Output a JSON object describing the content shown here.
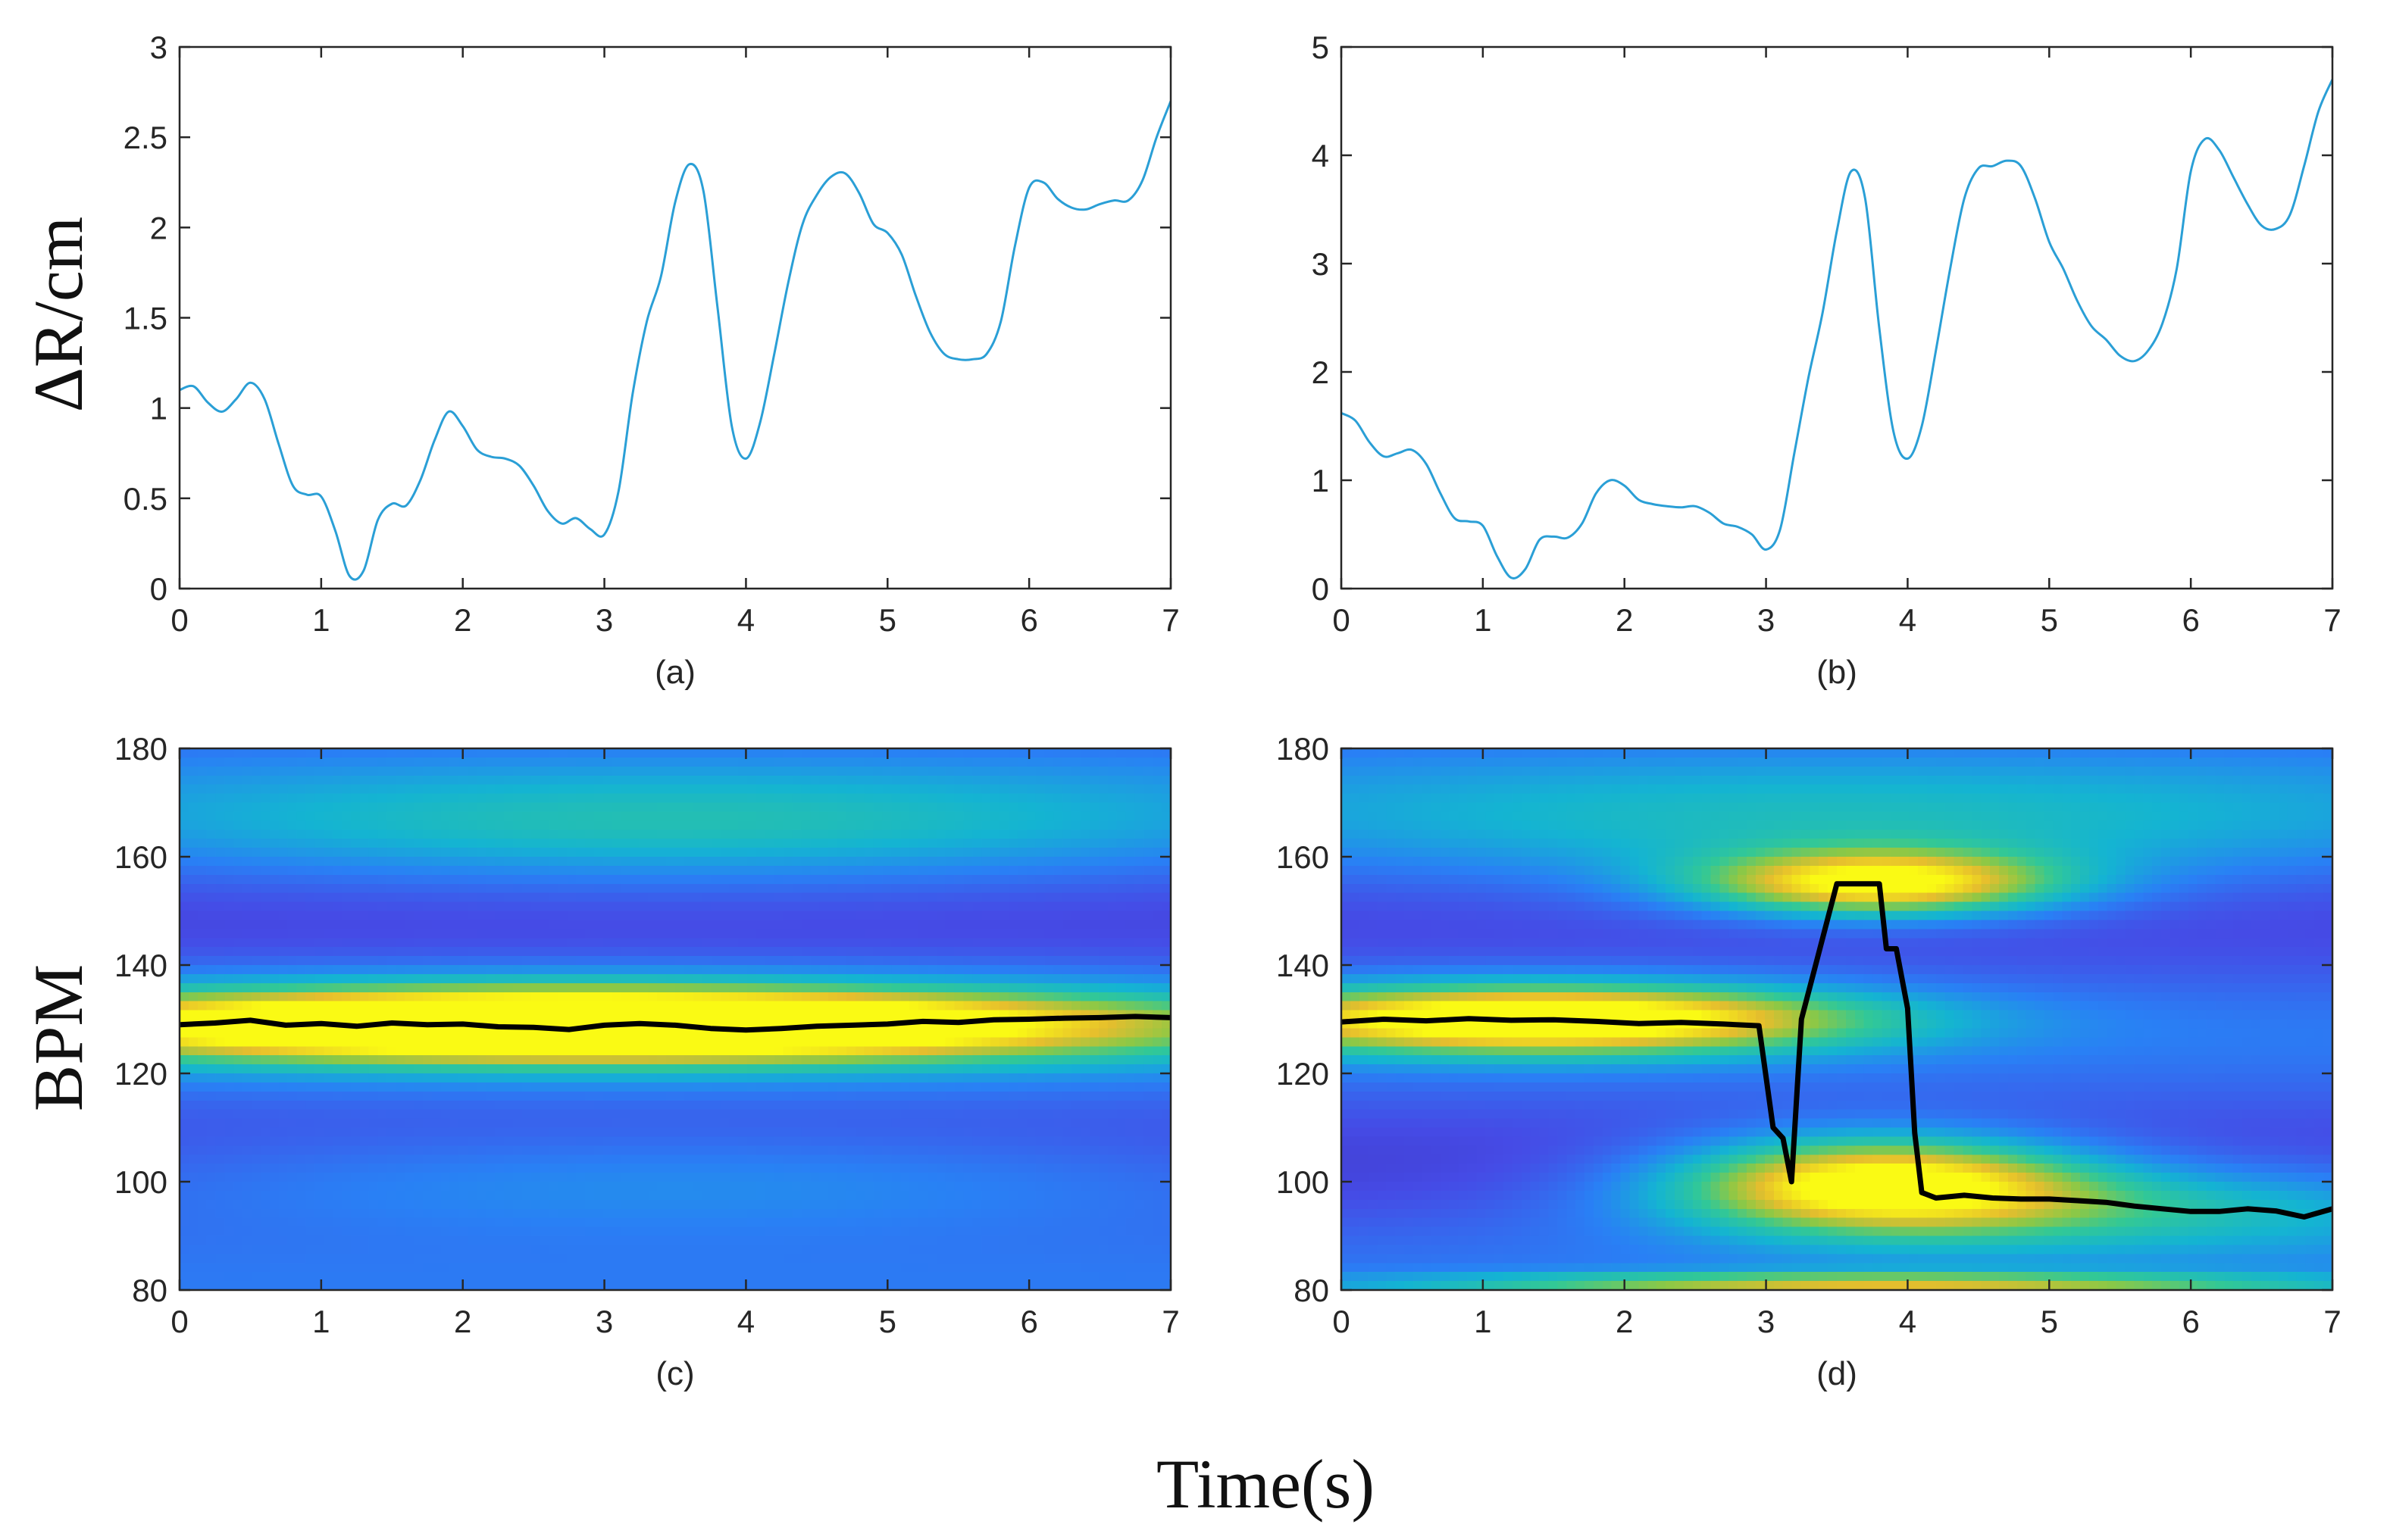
{
  "figure": {
    "ylabel_top": "ΔR/cm",
    "ylabel_bottom": "BPM",
    "xlabel": "Time(s)"
  },
  "chart_data": [
    {
      "id": "a",
      "type": "line",
      "panel_label": "(a)",
      "xlim": [
        0,
        7
      ],
      "ylim": [
        0,
        3
      ],
      "xticks": [
        "0",
        "1",
        "2",
        "3",
        "4",
        "5",
        "6",
        "7"
      ],
      "yticks": [
        "0",
        "0.5",
        "1",
        "1.5",
        "2",
        "2.5",
        "3"
      ],
      "ytick_values": [
        0,
        0.5,
        1,
        1.5,
        2,
        2.5,
        3
      ],
      "color": "#2a9fd6",
      "x": [
        0,
        0.1,
        0.2,
        0.3,
        0.4,
        0.5,
        0.6,
        0.7,
        0.8,
        0.9,
        1.0,
        1.1,
        1.2,
        1.3,
        1.4,
        1.5,
        1.6,
        1.7,
        1.8,
        1.9,
        2.0,
        2.1,
        2.2,
        2.3,
        2.4,
        2.5,
        2.6,
        2.7,
        2.8,
        2.9,
        3.0,
        3.1,
        3.2,
        3.3,
        3.4,
        3.5,
        3.6,
        3.7,
        3.8,
        3.9,
        4.0,
        4.1,
        4.2,
        4.3,
        4.4,
        4.5,
        4.6,
        4.7,
        4.8,
        4.9,
        5.0,
        5.1,
        5.2,
        5.3,
        5.4,
        5.5,
        5.6,
        5.7,
        5.8,
        5.9,
        6.0,
        6.1,
        6.2,
        6.3,
        6.4,
        6.5,
        6.6,
        6.7,
        6.8,
        6.9,
        7.0
      ],
      "y": [
        1.1,
        1.12,
        1.03,
        0.98,
        1.05,
        1.14,
        1.05,
        0.8,
        0.57,
        0.52,
        0.51,
        0.32,
        0.07,
        0.1,
        0.38,
        0.47,
        0.46,
        0.6,
        0.82,
        0.98,
        0.9,
        0.77,
        0.73,
        0.72,
        0.68,
        0.57,
        0.43,
        0.36,
        0.39,
        0.33,
        0.3,
        0.54,
        1.08,
        1.48,
        1.73,
        2.14,
        2.35,
        2.2,
        1.55,
        0.9,
        0.72,
        0.92,
        1.3,
        1.7,
        2.02,
        2.18,
        2.28,
        2.3,
        2.19,
        2.02,
        1.97,
        1.85,
        1.62,
        1.42,
        1.3,
        1.27,
        1.27,
        1.3,
        1.48,
        1.9,
        2.22,
        2.25,
        2.16,
        2.11,
        2.1,
        2.13,
        2.15,
        2.15,
        2.26,
        2.5,
        2.7
      ]
    },
    {
      "id": "b",
      "type": "line",
      "panel_label": "(b)",
      "xlim": [
        0,
        7
      ],
      "ylim": [
        0,
        5
      ],
      "xticks": [
        "0",
        "1",
        "2",
        "3",
        "4",
        "5",
        "6",
        "7"
      ],
      "yticks": [
        "0",
        "1",
        "2",
        "3",
        "4",
        "5"
      ],
      "ytick_values": [
        0,
        1,
        2,
        3,
        4,
        5
      ],
      "color": "#2a9fd6",
      "x": [
        0,
        0.1,
        0.2,
        0.3,
        0.4,
        0.5,
        0.6,
        0.7,
        0.8,
        0.9,
        1.0,
        1.1,
        1.2,
        1.3,
        1.4,
        1.5,
        1.6,
        1.7,
        1.8,
        1.9,
        2.0,
        2.1,
        2.2,
        2.3,
        2.4,
        2.5,
        2.6,
        2.7,
        2.8,
        2.9,
        3.0,
        3.1,
        3.2,
        3.3,
        3.4,
        3.5,
        3.6,
        3.7,
        3.8,
        3.9,
        4.0,
        4.1,
        4.2,
        4.3,
        4.4,
        4.5,
        4.6,
        4.7,
        4.8,
        4.9,
        5.0,
        5.1,
        5.2,
        5.3,
        5.4,
        5.5,
        5.6,
        5.7,
        5.8,
        5.9,
        6.0,
        6.1,
        6.2,
        6.3,
        6.4,
        6.5,
        6.6,
        6.7,
        6.8,
        6.9,
        7.0
      ],
      "y": [
        1.62,
        1.55,
        1.35,
        1.22,
        1.25,
        1.28,
        1.15,
        0.88,
        0.65,
        0.62,
        0.58,
        0.3,
        0.1,
        0.18,
        0.45,
        0.48,
        0.47,
        0.6,
        0.88,
        1.0,
        0.95,
        0.82,
        0.78,
        0.76,
        0.75,
        0.76,
        0.7,
        0.6,
        0.57,
        0.5,
        0.36,
        0.55,
        1.25,
        1.95,
        2.55,
        3.3,
        3.85,
        3.6,
        2.4,
        1.45,
        1.2,
        1.5,
        2.2,
        2.95,
        3.6,
        3.88,
        3.9,
        3.95,
        3.9,
        3.6,
        3.2,
        2.95,
        2.65,
        2.42,
        2.3,
        2.15,
        2.1,
        2.2,
        2.45,
        2.95,
        3.85,
        4.15,
        4.05,
        3.8,
        3.55,
        3.35,
        3.32,
        3.45,
        3.9,
        4.4,
        4.7
      ]
    },
    {
      "id": "c",
      "type": "heatmap",
      "panel_label": "(c)",
      "xlim": [
        0,
        7
      ],
      "ylim": [
        80,
        180
      ],
      "xticks": [
        "0",
        "1",
        "2",
        "3",
        "4",
        "5",
        "6",
        "7"
      ],
      "yticks": [
        "80",
        "100",
        "120",
        "140",
        "160",
        "180"
      ],
      "ytick_values": [
        80,
        100,
        120,
        140,
        160,
        180
      ],
      "colormap": "parula",
      "trace_color": "#000000",
      "blobs": [
        {
          "t": 2.7,
          "f": 129,
          "st": 2.6,
          "sf": 4.5,
          "amp": 1.0
        },
        {
          "t": 3.5,
          "f": 129,
          "st": 3.6,
          "sf": 6.0,
          "amp": 0.35
        },
        {
          "t": 3.5,
          "f": 165,
          "st": 3.2,
          "sf": 8.0,
          "amp": 0.28
        },
        {
          "t": 3.5,
          "f": 100,
          "st": 3.5,
          "sf": 7.0,
          "amp": 0.2
        }
      ],
      "trace_x": [
        0,
        0.25,
        0.5,
        0.75,
        1.0,
        1.25,
        1.5,
        1.75,
        2.0,
        2.25,
        2.5,
        2.75,
        3.0,
        3.25,
        3.5,
        3.75,
        4.0,
        4.25,
        4.5,
        4.75,
        5.0,
        5.25,
        5.5,
        5.75,
        6.0,
        6.25,
        6.5,
        6.75,
        7.0
      ],
      "trace_y": [
        129,
        129.3,
        129.8,
        128.9,
        129.2,
        128.7,
        129.3,
        129.0,
        129.1,
        128.6,
        128.5,
        128.1,
        128.9,
        129.2,
        128.9,
        128.3,
        128.0,
        128.3,
        128.7,
        128.9,
        129.1,
        129.6,
        129.4,
        129.9,
        130.0,
        130.2,
        130.3,
        130.5,
        130.3
      ]
    },
    {
      "id": "d",
      "type": "heatmap",
      "panel_label": "(d)",
      "xlim": [
        0,
        7
      ],
      "ylim": [
        80,
        180
      ],
      "xticks": [
        "0",
        "1",
        "2",
        "3",
        "4",
        "5",
        "6",
        "7"
      ],
      "yticks": [
        "80",
        "100",
        "120",
        "140",
        "160",
        "180"
      ],
      "ytick_values": [
        80,
        100,
        120,
        140,
        160,
        180
      ],
      "colormap": "parula",
      "trace_color": "#000000",
      "blobs": [
        {
          "t": 1.4,
          "f": 130,
          "st": 1.6,
          "sf": 4.5,
          "amp": 0.95
        },
        {
          "t": 3.8,
          "f": 155,
          "st": 0.9,
          "sf": 4.2,
          "amp": 0.82
        },
        {
          "t": 3.8,
          "f": 100,
          "st": 1.0,
          "sf": 6.0,
          "amp": 0.85
        },
        {
          "t": 3.8,
          "f": 81,
          "st": 2.2,
          "sf": 1.6,
          "amp": 0.55
        },
        {
          "t": 5.5,
          "f": 95,
          "st": 2.0,
          "sf": 6.0,
          "amp": 0.35
        },
        {
          "t": 3.5,
          "f": 165,
          "st": 3.5,
          "sf": 9.0,
          "amp": 0.25
        }
      ],
      "trace_x": [
        0,
        0.3,
        0.6,
        0.9,
        1.2,
        1.5,
        1.8,
        2.1,
        2.4,
        2.7,
        2.95,
        3.05,
        3.12,
        3.18,
        3.25,
        3.35,
        3.5,
        3.65,
        3.8,
        3.85,
        3.92,
        4.0,
        4.05,
        4.1,
        4.2,
        4.4,
        4.6,
        4.8,
        5.0,
        5.2,
        5.4,
        5.6,
        5.8,
        6.0,
        6.2,
        6.4,
        6.6,
        6.8,
        7.0
      ],
      "trace_y": [
        129.5,
        130.0,
        129.7,
        130.1,
        129.8,
        129.9,
        129.6,
        129.2,
        129.4,
        129.1,
        128.8,
        110,
        108,
        100,
        130,
        140,
        155,
        155,
        155,
        143,
        143,
        132,
        109,
        98,
        97,
        97.5,
        97,
        96.8,
        96.8,
        96.5,
        96.2,
        95.5,
        95.0,
        94.5,
        94.5,
        95.0,
        94.6,
        93.5,
        95.0
      ]
    }
  ]
}
